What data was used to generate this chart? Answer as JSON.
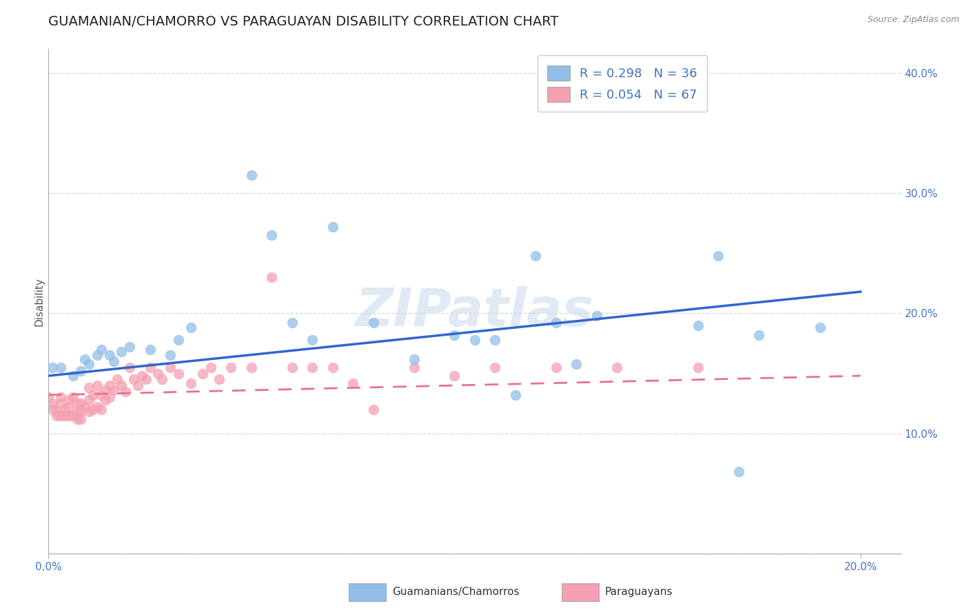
{
  "title": "GUAMANIAN/CHAMORRO VS PARAGUAYAN DISABILITY CORRELATION CHART",
  "source": "Source: ZipAtlas.com",
  "ylabel_label": "Disability",
  "xlim": [
    0.0,
    0.21
  ],
  "ylim": [
    -0.01,
    0.44
  ],
  "plot_ylim": [
    0.0,
    0.42
  ],
  "xtick_vals": [
    0.0,
    0.2
  ],
  "xtick_labels": [
    "0.0%",
    "20.0%"
  ],
  "right_ytick_vals": [
    0.1,
    0.2,
    0.3,
    0.4
  ],
  "right_ytick_labels": [
    "10.0%",
    "20.0%",
    "30.0%",
    "40.0%"
  ],
  "grid_ytick_vals": [
    0.0,
    0.1,
    0.2,
    0.3,
    0.4
  ],
  "guamanian_R": "0.298",
  "guamanian_N": "36",
  "paraguayan_R": "0.054",
  "paraguayan_N": "67",
  "guamanian_color": "#92BEE8",
  "paraguayan_color": "#F4A0B0",
  "guamanian_scatter_x": [
    0.001,
    0.003,
    0.006,
    0.008,
    0.009,
    0.01,
    0.012,
    0.013,
    0.015,
    0.016,
    0.018,
    0.02,
    0.025,
    0.03,
    0.032,
    0.035,
    0.05,
    0.055,
    0.06,
    0.065,
    0.07,
    0.08,
    0.09,
    0.1,
    0.105,
    0.11,
    0.115,
    0.12,
    0.125,
    0.13,
    0.135,
    0.16,
    0.165,
    0.17,
    0.175,
    0.19
  ],
  "guamanian_scatter_y": [
    0.155,
    0.155,
    0.148,
    0.152,
    0.162,
    0.158,
    0.165,
    0.17,
    0.165,
    0.16,
    0.168,
    0.172,
    0.17,
    0.165,
    0.178,
    0.188,
    0.315,
    0.265,
    0.192,
    0.178,
    0.272,
    0.192,
    0.162,
    0.182,
    0.178,
    0.178,
    0.132,
    0.248,
    0.192,
    0.158,
    0.198,
    0.19,
    0.248,
    0.068,
    0.182,
    0.188
  ],
  "paraguayan_scatter_x": [
    0.0,
    0.001,
    0.001,
    0.002,
    0.002,
    0.003,
    0.003,
    0.003,
    0.004,
    0.004,
    0.005,
    0.005,
    0.005,
    0.006,
    0.006,
    0.007,
    0.007,
    0.007,
    0.008,
    0.008,
    0.008,
    0.009,
    0.01,
    0.01,
    0.01,
    0.011,
    0.011,
    0.012,
    0.012,
    0.013,
    0.013,
    0.014,
    0.014,
    0.015,
    0.015,
    0.016,
    0.017,
    0.018,
    0.019,
    0.02,
    0.021,
    0.022,
    0.023,
    0.024,
    0.025,
    0.027,
    0.028,
    0.03,
    0.032,
    0.035,
    0.038,
    0.04,
    0.042,
    0.045,
    0.05,
    0.055,
    0.06,
    0.065,
    0.07,
    0.075,
    0.08,
    0.09,
    0.1,
    0.11,
    0.125,
    0.14,
    0.16
  ],
  "paraguayan_scatter_y": [
    0.13,
    0.12,
    0.125,
    0.118,
    0.115,
    0.125,
    0.115,
    0.13,
    0.12,
    0.115,
    0.128,
    0.115,
    0.122,
    0.13,
    0.115,
    0.125,
    0.112,
    0.118,
    0.125,
    0.118,
    0.112,
    0.122,
    0.138,
    0.128,
    0.118,
    0.132,
    0.12,
    0.14,
    0.122,
    0.132,
    0.12,
    0.136,
    0.128,
    0.14,
    0.13,
    0.136,
    0.145,
    0.14,
    0.135,
    0.155,
    0.145,
    0.14,
    0.148,
    0.145,
    0.155,
    0.15,
    0.145,
    0.155,
    0.15,
    0.142,
    0.15,
    0.155,
    0.145,
    0.155,
    0.155,
    0.23,
    0.155,
    0.155,
    0.155,
    0.142,
    0.12,
    0.155,
    0.148,
    0.155,
    0.155,
    0.155,
    0.155
  ],
  "guamanian_trend_x": [
    0.0,
    0.2
  ],
  "guamanian_trend_y": [
    0.148,
    0.218
  ],
  "paraguayan_trend_x": [
    0.0,
    0.2
  ],
  "paraguayan_trend_y": [
    0.132,
    0.148
  ],
  "watermark": "ZIPatlas",
  "watermark_color": "#C8D8EC",
  "background_color": "#FFFFFF",
  "grid_color": "#CCCCCC",
  "axis_color": "#4472C4",
  "title_color": "#222222",
  "title_fontsize": 14,
  "label_fontsize": 11,
  "tick_fontsize": 11,
  "legend_fontsize": 13
}
